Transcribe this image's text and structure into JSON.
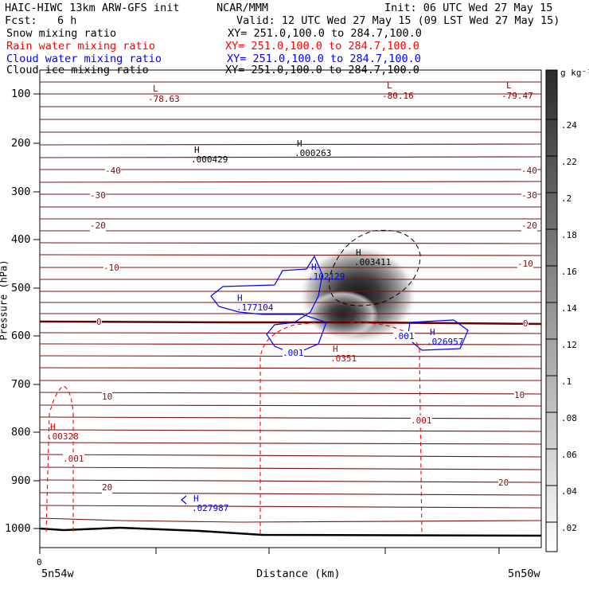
{
  "header": {
    "model": "HAIC-HIWC 13km ARW-GFS init",
    "org": "NCAR/MMM",
    "init": "Init: 06 UTC Wed 27 May 15",
    "fcst_label": "Fcst:",
    "fcst_value": "6 h",
    "valid": "Valid: 12 UTC Wed 27 May 15 (09 LST Wed 27 May 15)"
  },
  "legend": [
    {
      "label": "Snow mixing ratio",
      "xy": "XY= 251.0,100.0 to 284.7,100.0",
      "color": "#000000"
    },
    {
      "label": "Rain water mixing ratio",
      "xy": "XY= 251.0,100.0 to 284.7,100.0",
      "color": "#ff0000"
    },
    {
      "label": "Cloud water mixing ratio",
      "xy": "XY= 251.0,100.0 to 284.7,100.0",
      "color": "#0000ff"
    },
    {
      "label": "Cloud ice mixing ratio",
      "xy": "XY= 251.0,100.0 to 284.7,100.0",
      "color": "#000000"
    }
  ],
  "chart_data": {
    "type": "heatmap",
    "xlabel": "Distance (km)",
    "ylabel": "Pressure (hPa)",
    "yticks": [
      "100",
      "200",
      "300",
      "400",
      "500",
      "600",
      "700",
      "800",
      "900",
      "1000"
    ],
    "xtick_zero": "0",
    "x_left": "5n54w",
    "x_right": "5n50w",
    "colorbar": {
      "unit": "g kg⁻¹",
      "ticks": [
        ".24",
        ".22",
        ".2",
        ".18",
        ".16",
        ".14",
        ".12",
        ".1",
        ".08",
        ".06",
        ".04",
        ".02"
      ],
      "range": [
        0,
        0.26
      ]
    },
    "temperature_contours": [
      {
        "label_left": "-40",
        "label_right": "-40"
      },
      {
        "label_left": "-30",
        "label_right": "-30"
      },
      {
        "label_left": "-20",
        "label_right": "-20"
      },
      {
        "label_left": "-10",
        "label_right": "-10"
      },
      {
        "label_left": "0",
        "label_right": "0"
      },
      {
        "label_left": "10",
        "label_right": "10"
      },
      {
        "label_left": "20",
        "label_right": "20"
      }
    ],
    "extrema_labels": [
      {
        "kind": "L",
        "value": "-78.63",
        "color": "#8b0000"
      },
      {
        "kind": "L",
        "value": "-80.16",
        "color": "#8b0000"
      },
      {
        "kind": "L",
        "value": "-79.47",
        "color": "#8b0000"
      },
      {
        "kind": "H",
        "value": ".000429",
        "color": "#000000"
      },
      {
        "kind": "H",
        "value": ".000263",
        "color": "#000000"
      },
      {
        "kind": "H",
        "value": ".003411",
        "color": "#000000"
      },
      {
        "kind": "H",
        "value": ".102129",
        "color": "#0000ff"
      },
      {
        "kind": "H",
        "value": ".177104",
        "color": "#0000ff"
      },
      {
        "kind": "H",
        "value": ".026957",
        "color": "#0000ff"
      },
      {
        "kind": "H",
        "value": ".027987",
        "color": "#0000ff"
      },
      {
        "kind": "H",
        "value": ".0351",
        "color": "#cc0000"
      },
      {
        "kind": "H",
        "value": ".00328",
        "color": "#cc0000"
      }
    ],
    "contour_labels": [
      {
        "value": ".001",
        "color": "#0000ff"
      },
      {
        "value": ".001",
        "color": "#0000ff"
      },
      {
        "value": ".001",
        "color": "#cc0000"
      },
      {
        "value": ".001",
        "color": "#cc0000"
      }
    ]
  }
}
